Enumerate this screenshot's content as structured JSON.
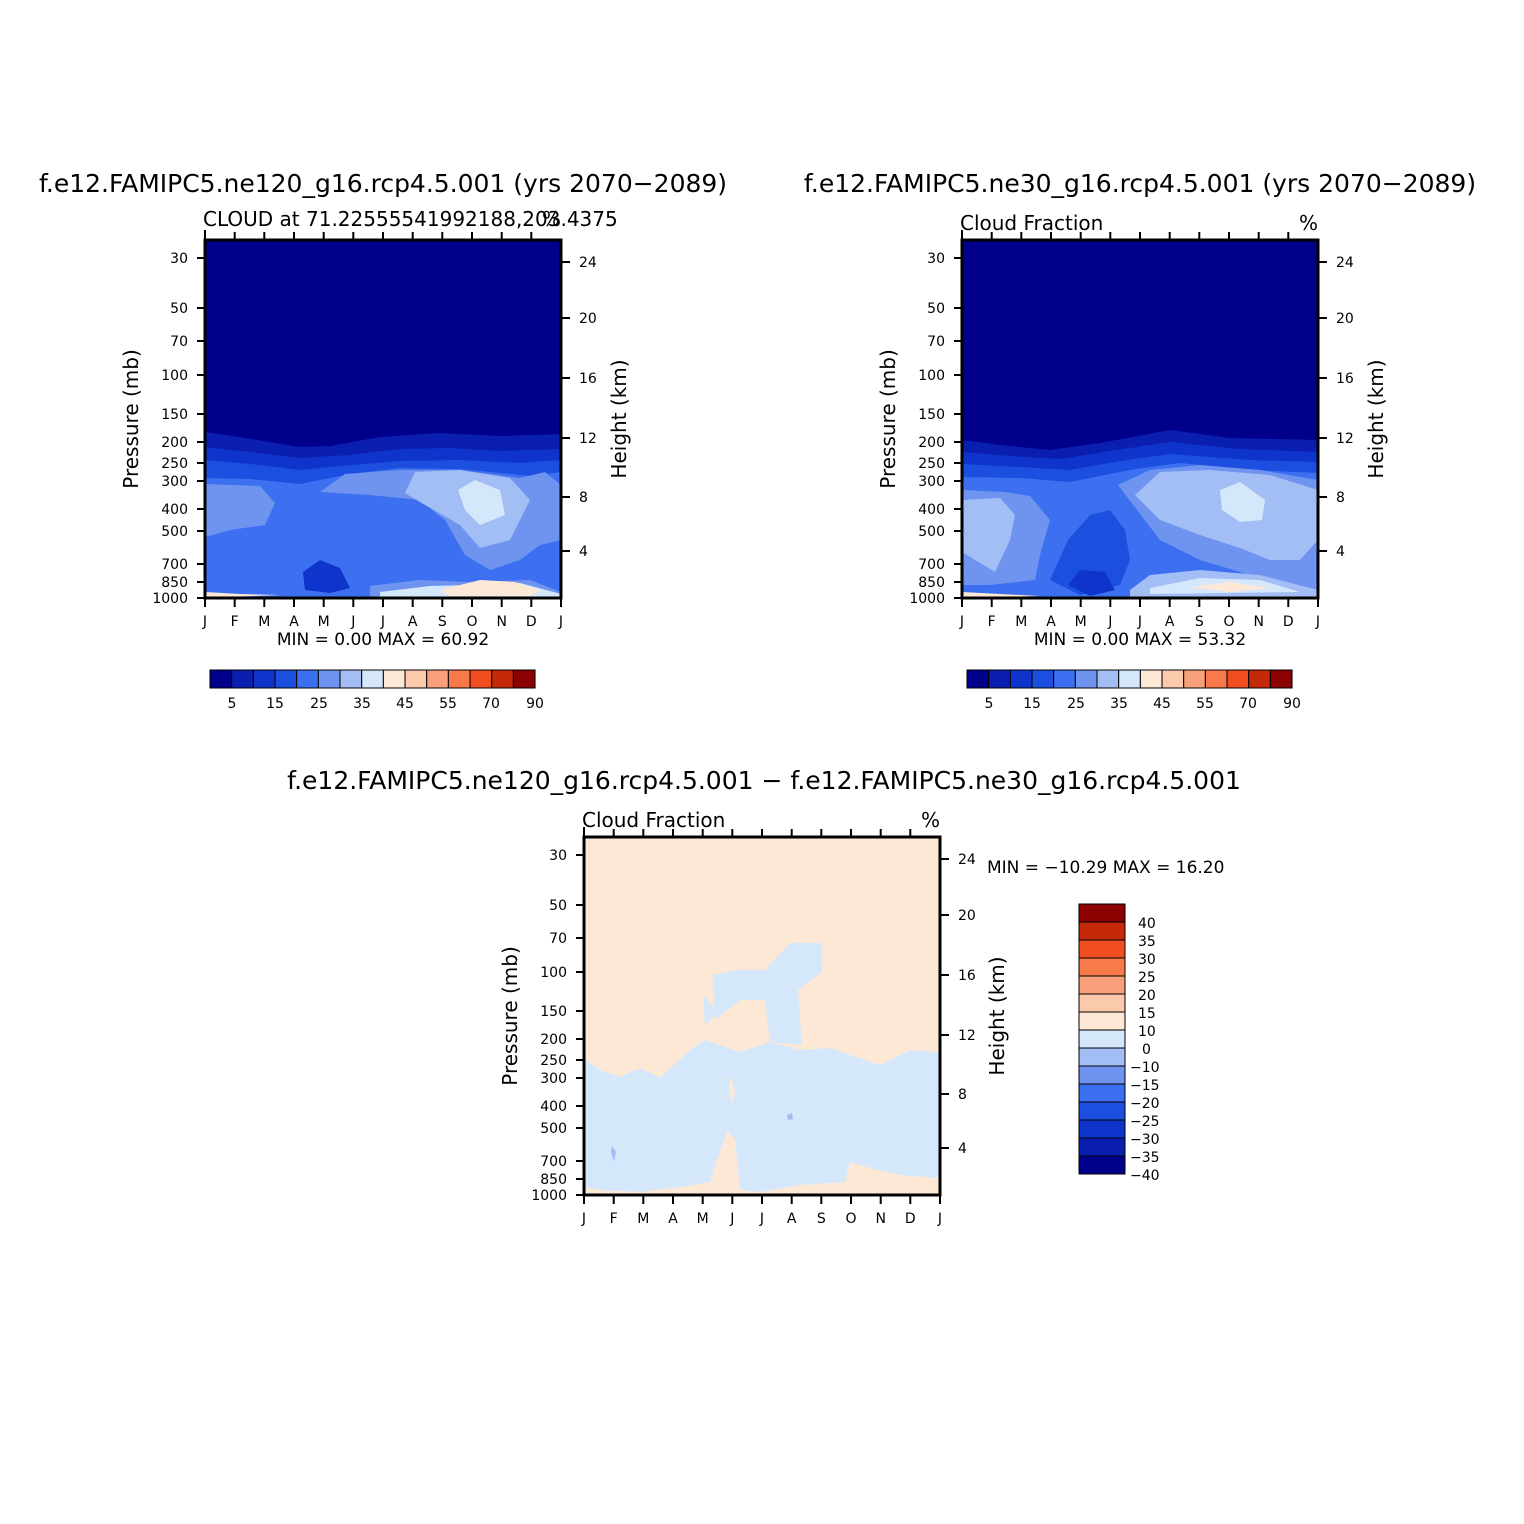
{
  "colors": {
    "frame": "#000000",
    "levels": [
      "#00008b",
      "#0a1fb0",
      "#0e34cc",
      "#1c4fe0",
      "#3d70f0",
      "#6f94f0",
      "#a3bdf5",
      "#d5e7fb",
      "#fde8d6",
      "#fbc9ab",
      "#f8a07c",
      "#f87a4a",
      "#f04e20",
      "#c42a0a",
      "#8b0000"
    ]
  },
  "chart_data": [
    {
      "type": "contour",
      "title": "f.e12.FAMIPC5.ne120_g16.rcp4.5.001 (yrs 2070−2089)",
      "subtitle_left": "CLOUD at 71.22555541992188,203.4375",
      "subtitle_right": "%",
      "ylabel": "Pressure (mb)",
      "y2label": "Height (km)",
      "x_ticks": [
        "J",
        "F",
        "M",
        "A",
        "M",
        "J",
        "J",
        "A",
        "S",
        "O",
        "N",
        "D",
        "J"
      ],
      "y_ticks": [
        "30",
        "50",
        "70",
        "100",
        "150",
        "200",
        "250",
        "300",
        "400",
        "500",
        "700",
        "850",
        "1000"
      ],
      "y2_ticks": [
        "24",
        "20",
        "16",
        "12",
        "8",
        "4"
      ],
      "minmax": "MIN =    0.00  MAX =   60.92",
      "colorbar_labels": [
        "5",
        "15",
        "25",
        "35",
        "45",
        "55",
        "70",
        "90"
      ]
    },
    {
      "type": "contour",
      "title": "f.e12.FAMIPC5.ne30_g16.rcp4.5.001 (yrs 2070−2089)",
      "subtitle_left": "Cloud Fraction",
      "subtitle_right": "%",
      "ylabel": "Pressure (mb)",
      "y2label": "Height (km)",
      "x_ticks": [
        "J",
        "F",
        "M",
        "A",
        "M",
        "J",
        "J",
        "A",
        "S",
        "O",
        "N",
        "D",
        "J"
      ],
      "y_ticks": [
        "30",
        "50",
        "70",
        "100",
        "150",
        "200",
        "250",
        "300",
        "400",
        "500",
        "700",
        "850",
        "1000"
      ],
      "y2_ticks": [
        "24",
        "20",
        "16",
        "12",
        "8",
        "4"
      ],
      "minmax": "MIN =    0.00  MAX =   53.32",
      "colorbar_labels": [
        "5",
        "15",
        "25",
        "35",
        "45",
        "55",
        "70",
        "90"
      ]
    },
    {
      "type": "contour",
      "title": "f.e12.FAMIPC5.ne120_g16.rcp4.5.001  −  f.e12.FAMIPC5.ne30_g16.rcp4.5.001",
      "subtitle_left": "Cloud Fraction",
      "subtitle_right": "%",
      "ylabel": "Pressure (mb)",
      "y2label": "Height (km)",
      "x_ticks": [
        "J",
        "F",
        "M",
        "A",
        "M",
        "J",
        "J",
        "A",
        "S",
        "O",
        "N",
        "D",
        "J"
      ],
      "y_ticks": [
        "30",
        "50",
        "70",
        "100",
        "150",
        "200",
        "250",
        "300",
        "400",
        "500",
        "700",
        "850",
        "1000"
      ],
      "y2_ticks": [
        "24",
        "20",
        "16",
        "12",
        "8",
        "4"
      ],
      "minmax": "MIN = −10.29  MAX =   16.20",
      "colorbar_labels": [
        "40",
        "35",
        "30",
        "25",
        "20",
        "15",
        "10",
        "0",
        "−10",
        "−15",
        "−20",
        "−25",
        "−30",
        "−35",
        "−40"
      ]
    }
  ]
}
